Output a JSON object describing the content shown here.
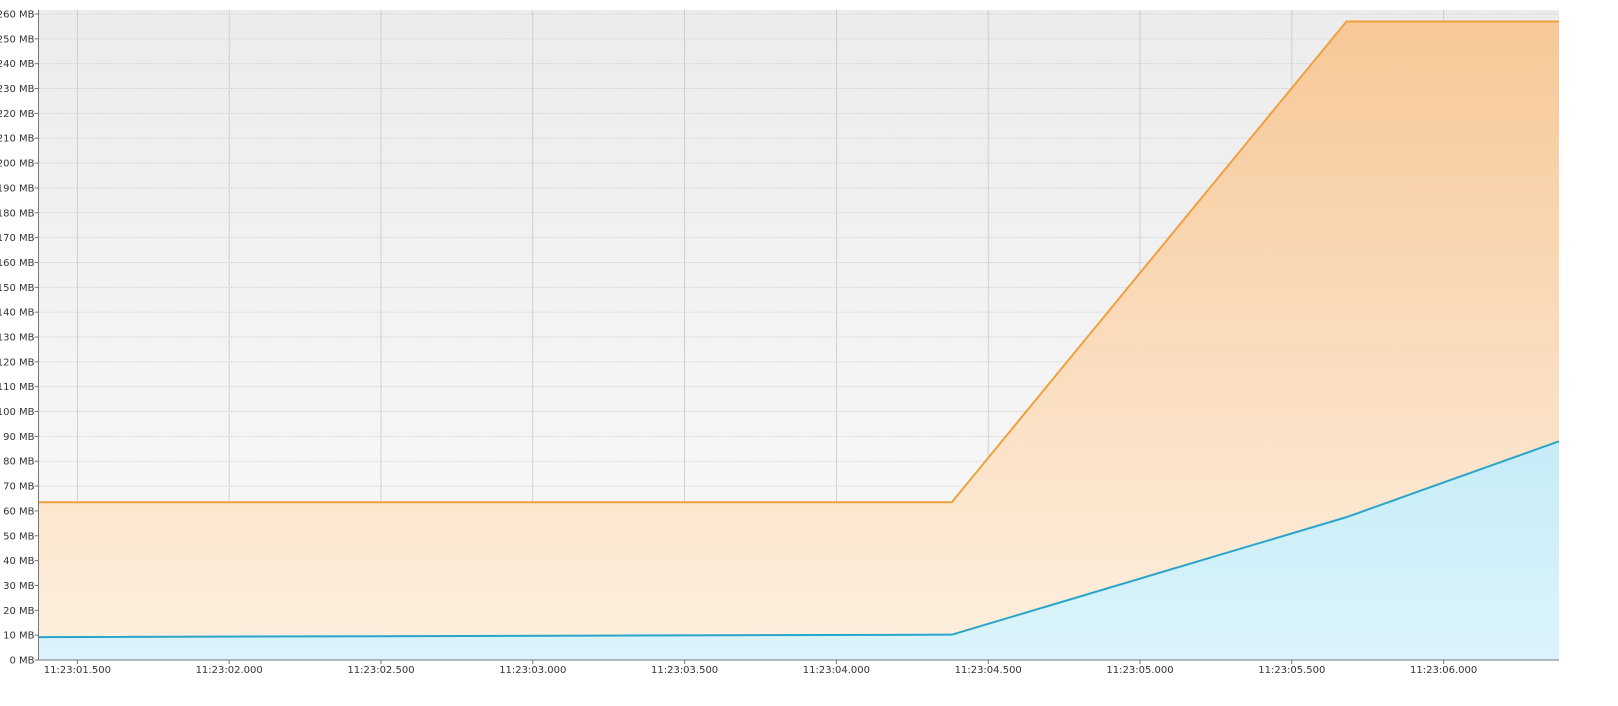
{
  "chart_data": {
    "type": "area",
    "title": "",
    "xlabel": "",
    "ylabel": "",
    "x_unit": "time (HH:MM:SS.mmm)",
    "y_unit": "MB",
    "xlim": [
      "11:23:01.372",
      "11:23:06.380"
    ],
    "ylim": [
      0,
      260
    ],
    "grid": true,
    "legend": "none",
    "y_ticks": [
      0,
      10,
      20,
      30,
      40,
      50,
      60,
      70,
      80,
      90,
      100,
      110,
      120,
      130,
      140,
      150,
      160,
      170,
      180,
      190,
      200,
      210,
      220,
      230,
      240,
      250,
      260
    ],
    "y_tick_labels": [
      "0 MB",
      "10 MB",
      "20 MB",
      "30 MB",
      "40 MB",
      "50 MB",
      "60 MB",
      "70 MB",
      "80 MB",
      "90 MB",
      "100 MB",
      "110 MB",
      "120 MB",
      "130 MB",
      "140 MB",
      "150 MB",
      "160 MB",
      "170 MB",
      "180 MB",
      "190 MB",
      "200 MB",
      "210 MB",
      "220 MB",
      "230 MB",
      "240 MB",
      "250 MB",
      "260 MB"
    ],
    "x_ticks": [
      "11:23:01.500",
      "11:23:02.000",
      "11:23:02.500",
      "11:23:03.000",
      "11:23:03.500",
      "11:23:04.000",
      "11:23:04.500",
      "11:23:05.000",
      "11:23:05.500",
      "11:23:06.000"
    ],
    "series": [
      {
        "color": "#f0a040",
        "fill_top": "#f7c898",
        "fill_bottom": "#fdf0e0",
        "points": [
          {
            "x": "11:23:01.372",
            "y": 63.5
          },
          {
            "x": "11:23:04.380",
            "y": 63.5
          },
          {
            "x": "11:23:05.680",
            "y": 257
          },
          {
            "x": "11:23:06.380",
            "y": 257
          }
        ]
      },
      {
        "color": "#2aa4c9",
        "fill_top": "#c6ecf7",
        "fill_bottom": "#dcf4fb",
        "points": [
          {
            "x": "11:23:01.372",
            "y": 9.2
          },
          {
            "x": "11:23:04.380",
            "y": 10.2
          },
          {
            "x": "11:23:05.680",
            "y": 57.5
          },
          {
            "x": "11:23:06.380",
            "y": 88
          }
        ]
      }
    ]
  }
}
